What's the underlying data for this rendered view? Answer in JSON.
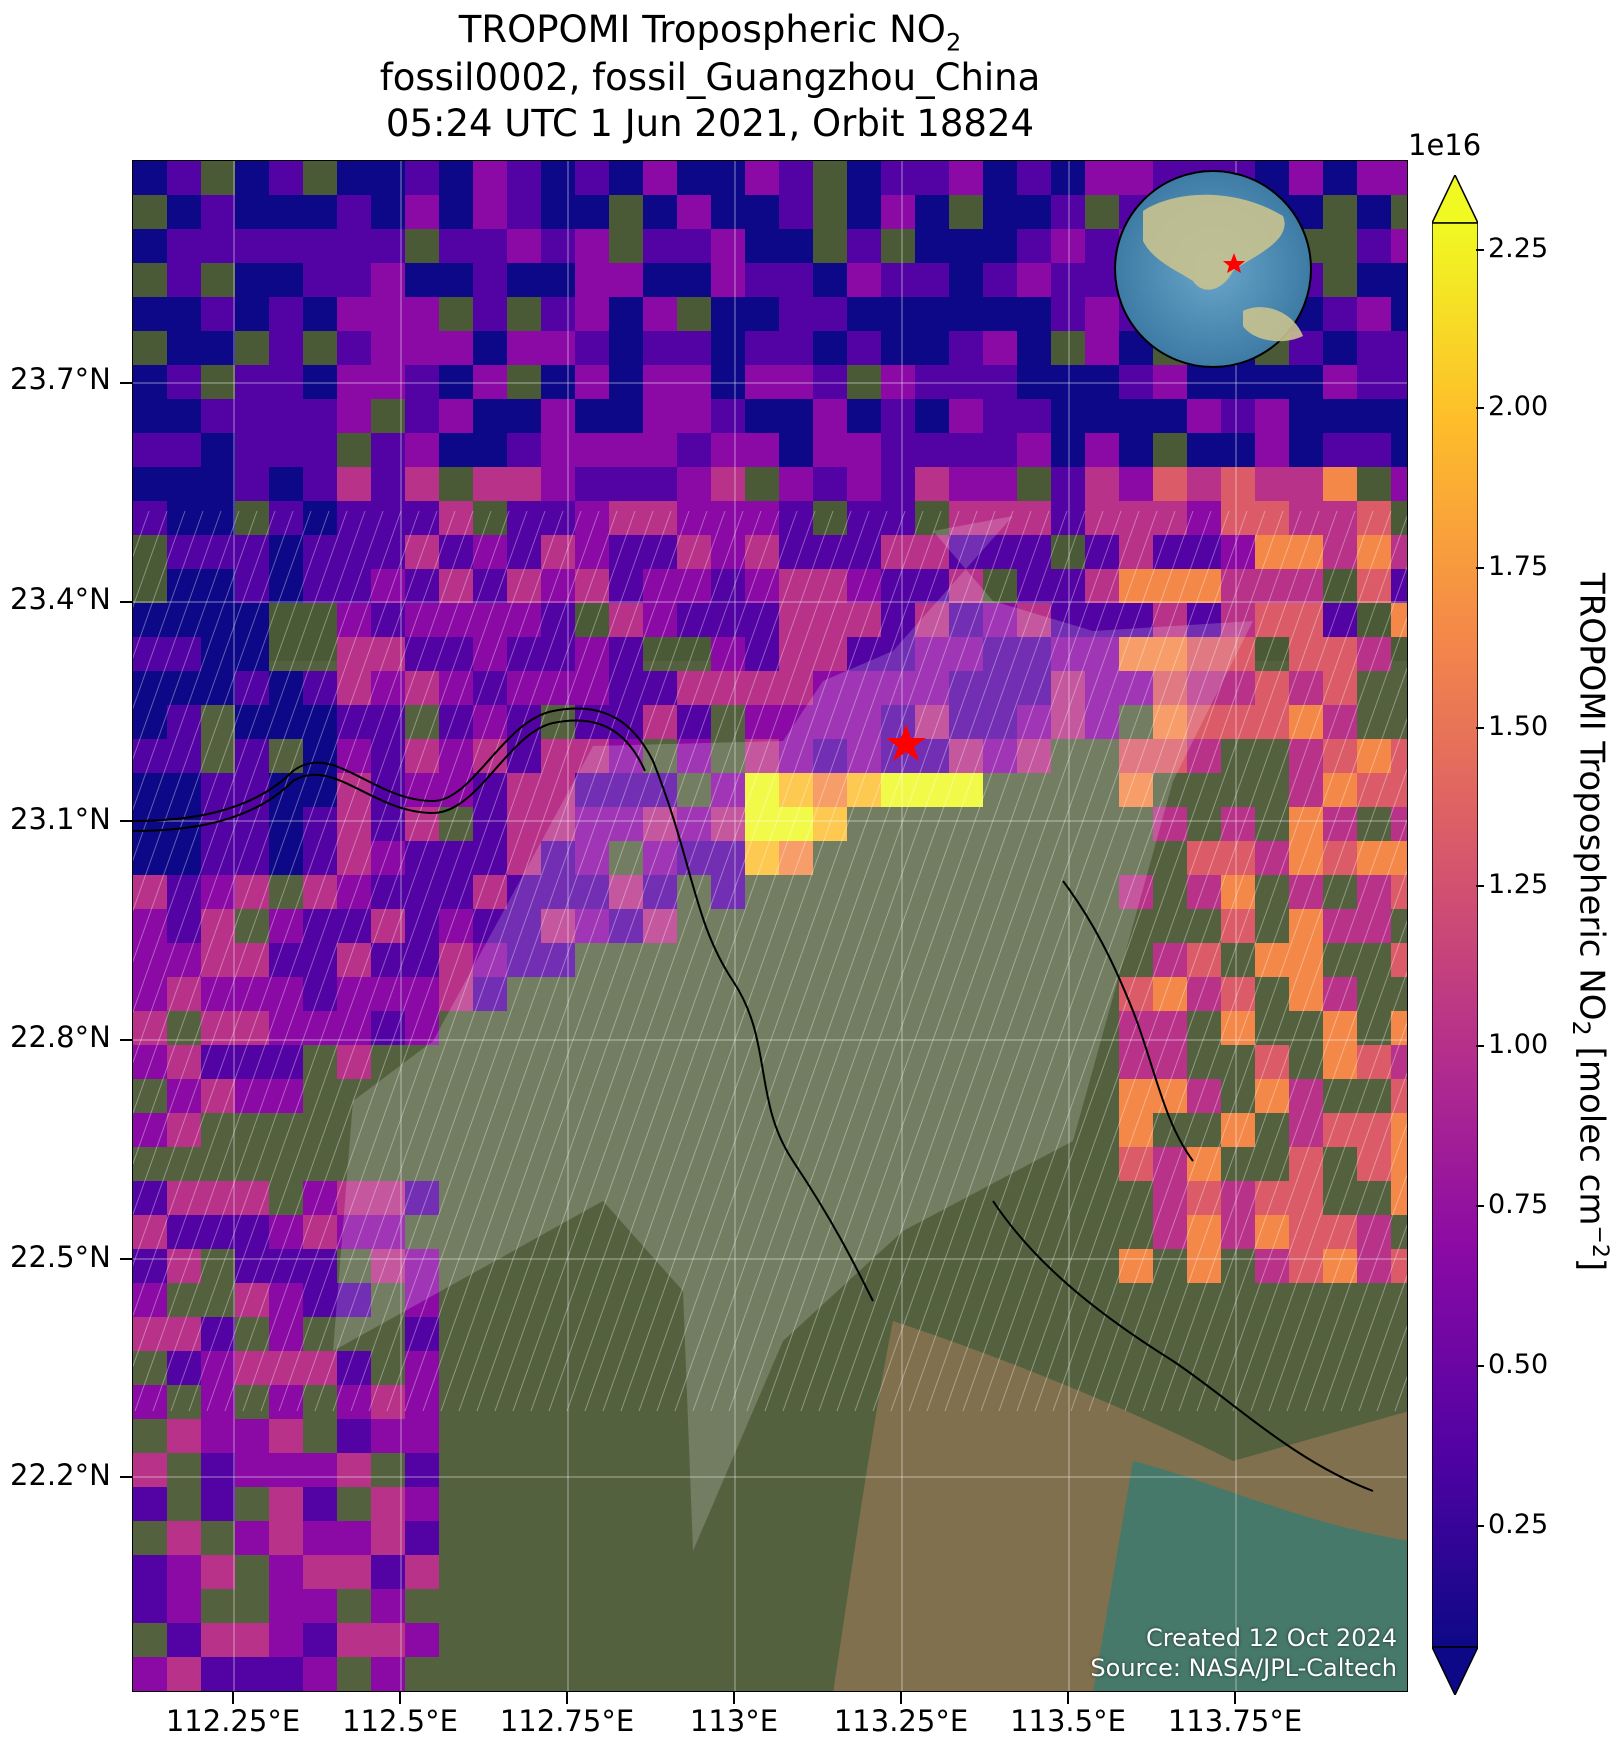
{
  "title": {
    "line1_prefix": "TROPOMI Tropospheric NO",
    "line1_sub": "2",
    "line2": "fossil0002, fossil_Guangzhou_China",
    "line3": "05:24 UTC 1 Jun 2021, Orbit 18824"
  },
  "axes": {
    "x_ticks": [
      "112.25°E",
      "112.5°E",
      "112.75°E",
      "113°E",
      "113.25°E",
      "113.5°E",
      "113.75°E"
    ],
    "y_ticks": [
      "23.7°N",
      "23.4°N",
      "23.1°N",
      "22.8°N",
      "22.5°N",
      "22.2°N"
    ]
  },
  "colorbar": {
    "exponent": "1e16",
    "ticks": [
      "0.25",
      "0.50",
      "0.75",
      "1.00",
      "1.25",
      "1.50",
      "1.75",
      "2.00",
      "2.25"
    ],
    "label_prefix": "TROPOMI Tropospheric NO",
    "label_sub": "2",
    "label_unit": " [molec cm",
    "label_sup": "−2",
    "label_end": "]",
    "colors": [
      "#0d0887",
      "#5302a3",
      "#8b0aa5",
      "#b83289",
      "#db5c68",
      "#f48849",
      "#febd2a",
      "#f0f921"
    ]
  },
  "credits": {
    "created": "Created 12 Oct 2024",
    "source": "Source: NASA/JPL-Caltech"
  },
  "target_marker_color": "#ff0000"
}
